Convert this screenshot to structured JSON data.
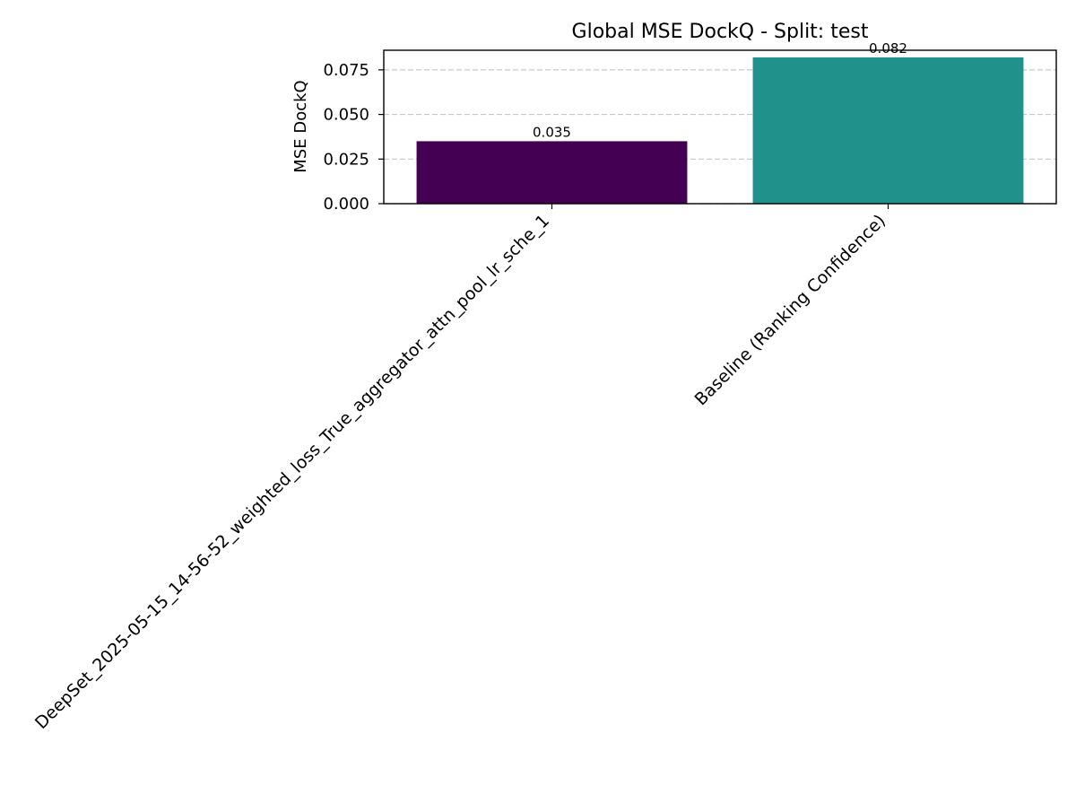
{
  "chart_data": {
    "type": "bar",
    "title": "Global MSE DockQ - Split: test",
    "xlabel": "",
    "ylabel": "MSE DockQ",
    "categories": [
      "DeepSet_2025-05-15_14-56-52_weighted_loss_True_aggregator_attn_pool_lr_sche_1",
      "Baseline (Ranking Confidence)"
    ],
    "values": [
      0.035,
      0.082
    ],
    "data_labels": [
      "0.035",
      "0.082"
    ],
    "bar_colors": [
      "#440154",
      "#21918c"
    ],
    "ylim": [
      0,
      0.086
    ],
    "yticks": [
      0,
      0.025,
      0.05,
      0.075
    ],
    "ytick_labels": [
      "0.000",
      "0.025",
      "0.050",
      "0.075"
    ],
    "grid": "y-dashed",
    "legend": "none"
  }
}
